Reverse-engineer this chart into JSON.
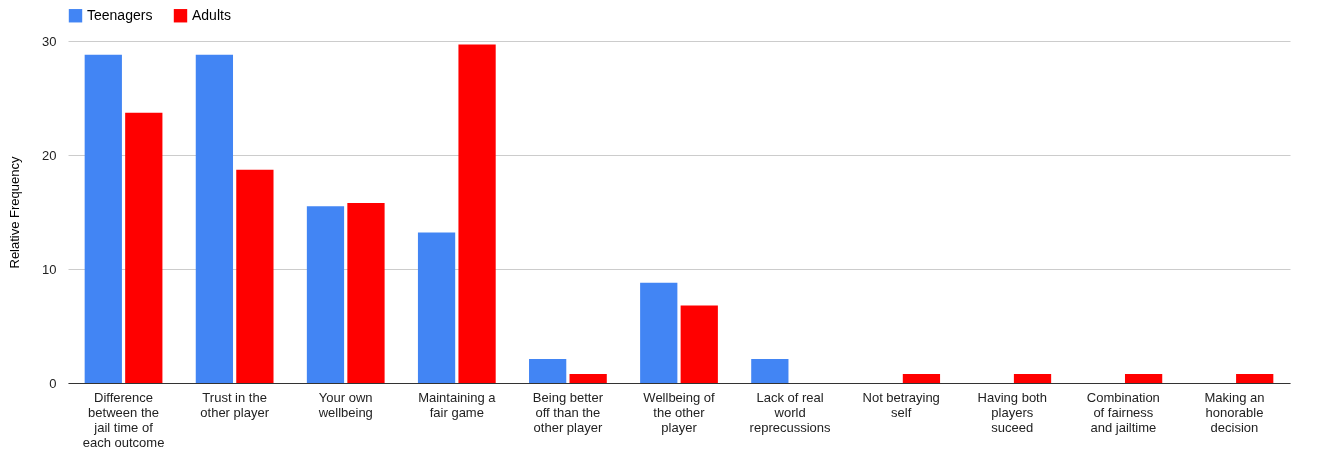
{
  "chart_data": {
    "type": "bar",
    "ylabel": "Relative Frequency",
    "categories": [
      "Difference between the jail time of each outcome",
      "Trust in the other player",
      "Your own wellbeing",
      "Maintaining a fair game",
      "Being better off than the other player",
      "Wellbeing of the other player",
      "Lack of real world reprecussions",
      "Not betraying self",
      "Having both players suceed",
      "Combination of fairness and jailtime",
      "Making an honorable decision"
    ],
    "series": [
      {
        "name": "Teenagers",
        "color": "#4285f4",
        "values": [
          28.8,
          28.8,
          15.5,
          13.2,
          2.1,
          8.8,
          2.1,
          0,
          0,
          0,
          0
        ]
      },
      {
        "name": "Adults",
        "color": "#ff0000",
        "values": [
          23.7,
          18.7,
          15.8,
          29.7,
          0.8,
          6.8,
          0,
          0.8,
          0.8,
          0.8,
          0.8
        ]
      }
    ],
    "ylim": [
      0,
      30
    ],
    "yticks": [
      0,
      10,
      20,
      30
    ],
    "grid": "y",
    "legend": "top"
  }
}
